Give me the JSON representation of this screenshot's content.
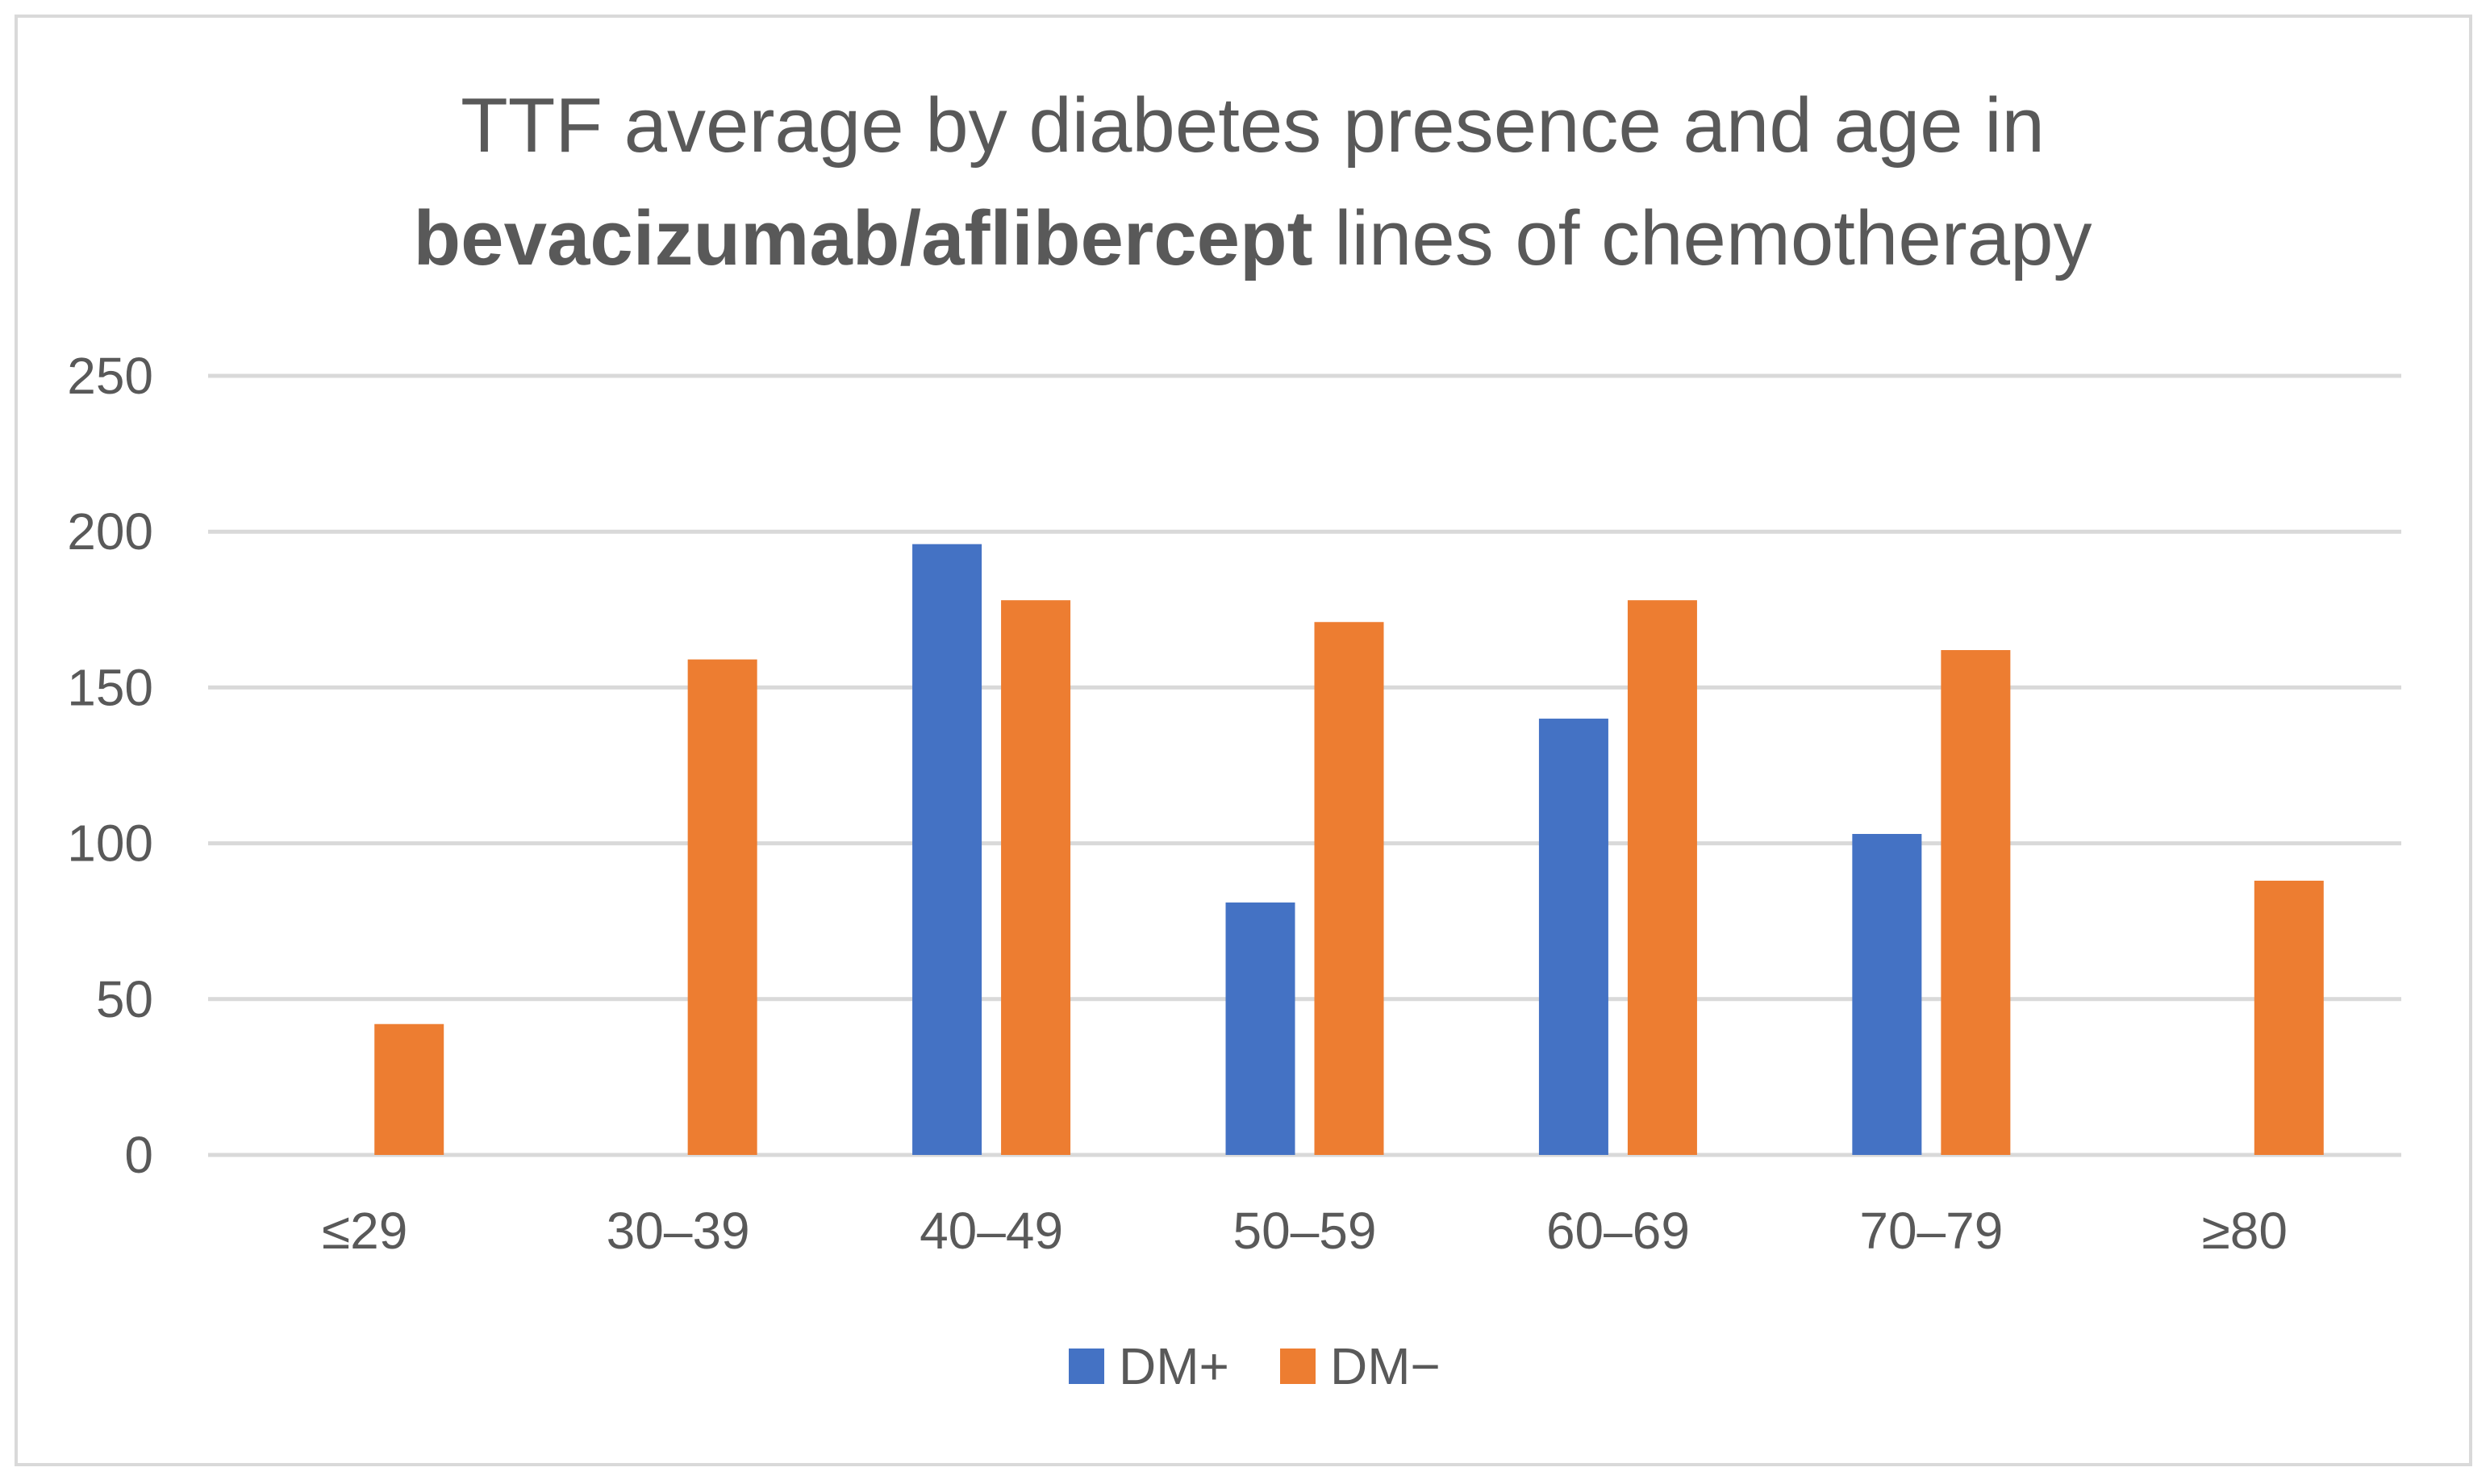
{
  "chart_data": {
    "type": "bar",
    "title": {
      "line1": "TTF average by diabetes presence  and age in",
      "line2_bold": "bevacizumab/aflibercept",
      "line2_rest": " lines of chemotherapy"
    },
    "xlabel": "",
    "ylabel": "",
    "categories": [
      "≤29",
      "30–39",
      "40–49",
      "50–59",
      "60–69",
      "70–79",
      "≥80"
    ],
    "ylim": [
      0,
      250
    ],
    "yticks": [
      0,
      50,
      100,
      150,
      200,
      250
    ],
    "grid": true,
    "legend_position": "bottom",
    "series": [
      {
        "name": "DM+",
        "color": "#4472c4",
        "values": [
          null,
          null,
          196,
          81,
          140,
          103,
          null
        ]
      },
      {
        "name": "DM−",
        "color": "#ed7d31",
        "values": [
          42,
          159,
          178,
          171,
          178,
          162,
          88
        ]
      }
    ]
  }
}
